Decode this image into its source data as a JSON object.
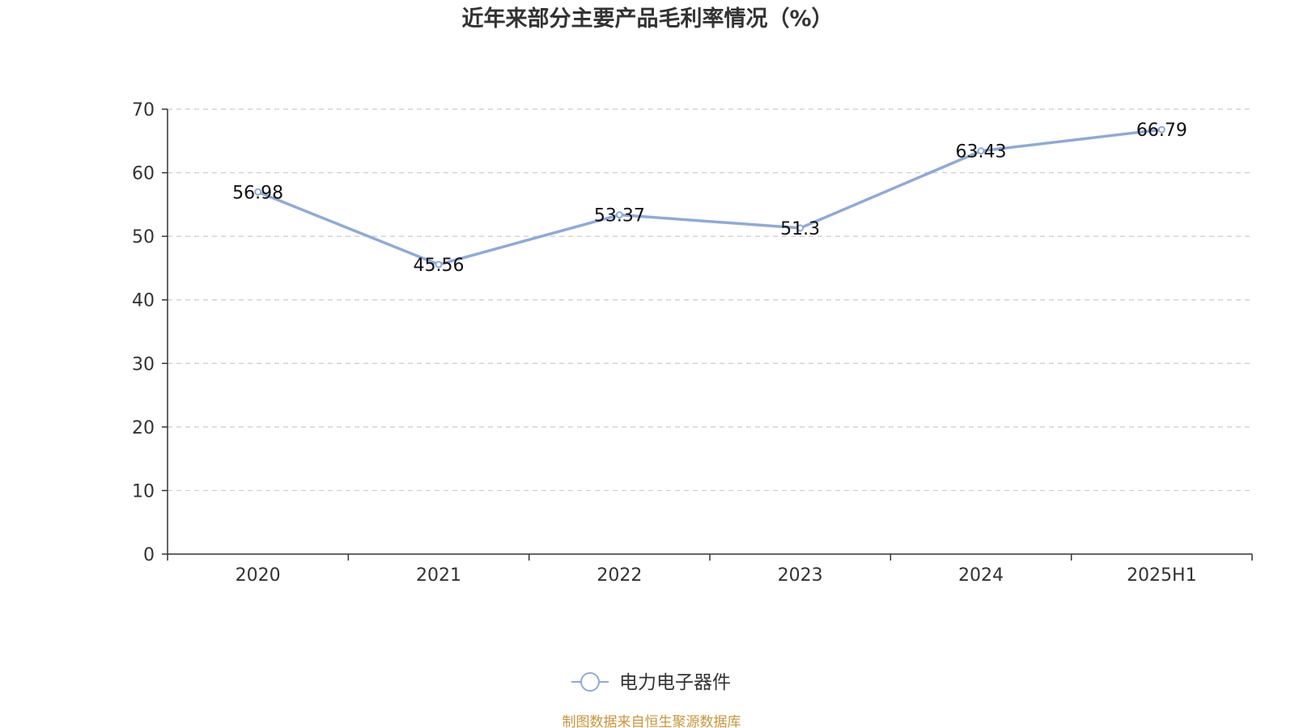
{
  "chart_data": {
    "type": "line",
    "title": "近年来部分主要产品毛利率情况（%）",
    "categories": [
      "2020",
      "2021",
      "2022",
      "2023",
      "2024",
      "2025H1"
    ],
    "series": [
      {
        "name": "电力电子器件",
        "values": [
          56.98,
          45.56,
          53.37,
          51.3,
          63.43,
          66.79
        ],
        "labels": [
          "56.98",
          "45.56",
          "53.37",
          "51.3",
          "63.43",
          "66.79"
        ],
        "color": "#8eaad9"
      }
    ],
    "yticks": [
      "0",
      "10",
      "20",
      "30",
      "40",
      "50",
      "60",
      "70"
    ],
    "ylim": [
      0,
      70
    ],
    "grid": "horizontal-dashed",
    "legend_position": "bottom-center"
  },
  "source_note": "制图数据来自恒生聚源数据库",
  "colors": {
    "axis": "#333333",
    "grid": "#cccccc",
    "source": "#c8963c"
  }
}
